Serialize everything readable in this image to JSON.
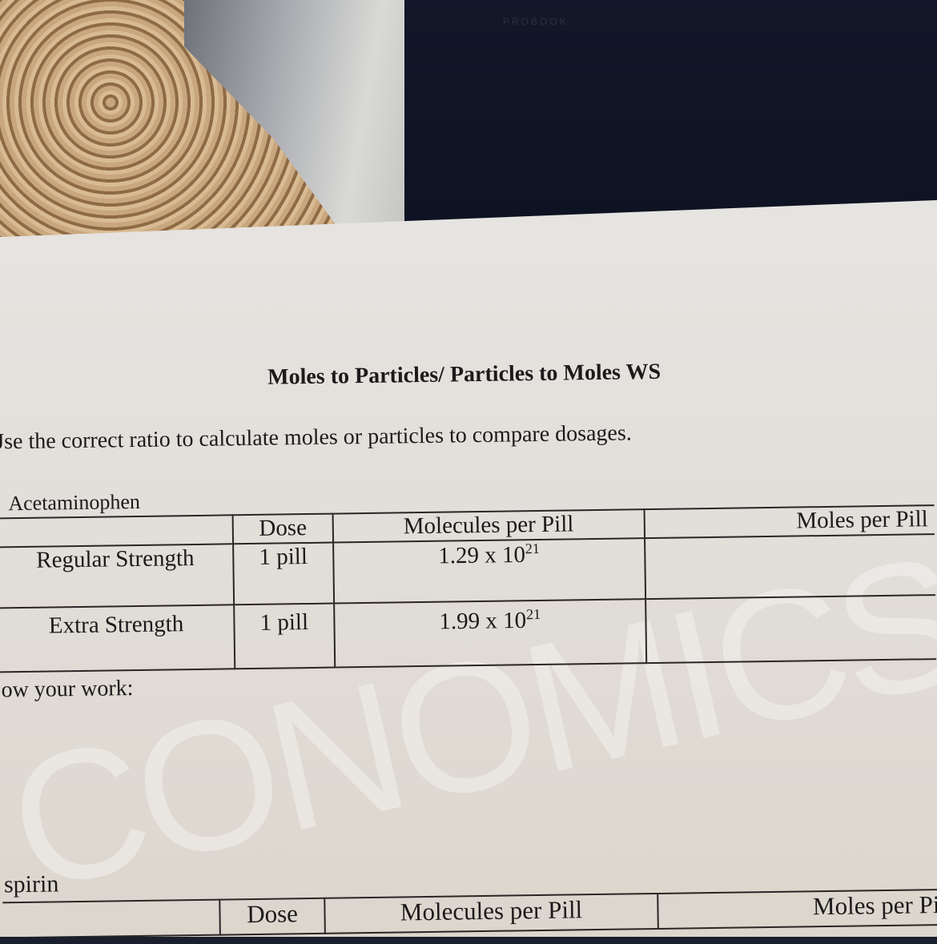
{
  "background": {
    "laptop_brand": "PROBOOK"
  },
  "worksheet": {
    "title": "Moles to Particles/ Particles to Moles WS",
    "instruction": "Jse the correct ratio to calculate moles or particles to compare dosages.",
    "watermark": "CONOMICS",
    "acetaminophen": {
      "label": "Acetaminophen",
      "headers": [
        "",
        "Dose",
        "Molecules per Pill",
        "Moles per Pill"
      ],
      "rows": [
        {
          "name": "Regular Strength",
          "dose": "1 pill",
          "molecules_base": "1.29 x 10",
          "molecules_exp": "21",
          "moles": ""
        },
        {
          "name": "Extra Strength",
          "dose": "1 pill",
          "molecules_base": "1.99 x 10",
          "molecules_exp": "21",
          "moles": ""
        }
      ]
    },
    "show_work_label": "ow your work:",
    "aspirin": {
      "label": "spirin",
      "headers": [
        "",
        "Dose",
        "Molecules per Pill",
        "Moles per Pi"
      ]
    }
  }
}
